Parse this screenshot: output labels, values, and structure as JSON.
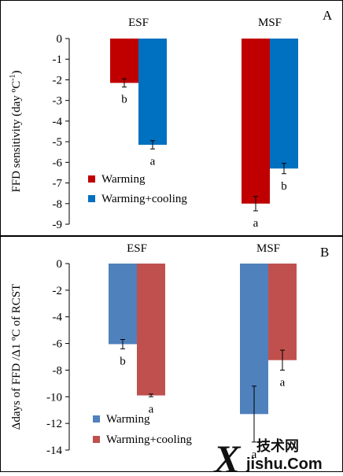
{
  "chart_data": [
    {
      "type": "bar",
      "panel_label": "A",
      "categories": [
        "ESF",
        "MSF"
      ],
      "ylabel_main": "FFD  sensitivity (day ºC",
      "ylabel_sup": "-1",
      "ylabel_close": ")",
      "ylim": [
        -9,
        0
      ],
      "yticks": [
        0,
        -1,
        -2,
        -3,
        -4,
        -5,
        -6,
        -7,
        -8,
        -9
      ],
      "series": [
        {
          "name": "Warming",
          "color": "#c00000",
          "values": [
            -2.15,
            -8.0
          ],
          "errors": [
            0.2,
            0.35
          ],
          "letters": [
            "b",
            "a"
          ]
        },
        {
          "name": "Warming+cooling",
          "color": "#0070c0",
          "values": [
            -5.15,
            -6.3
          ],
          "errors": [
            0.2,
            0.25
          ],
          "letters": [
            "a",
            "b"
          ]
        }
      ],
      "legend_position": "bottom-left"
    },
    {
      "type": "bar",
      "panel_label": "B",
      "categories": [
        "ESF",
        "MSF"
      ],
      "ylabel_main": "Δdays of FFD /Δ1 ºC of RCST",
      "ylim": [
        -14,
        0
      ],
      "yticks": [
        0,
        -2,
        -4,
        -6,
        -8,
        -10,
        -12,
        -14
      ],
      "series": [
        {
          "name": "Warming",
          "color": "#4f81bd",
          "values": [
            -6.05,
            -11.3
          ],
          "errors": [
            0.35,
            2.1
          ],
          "letters": [
            "b",
            "a"
          ]
        },
        {
          "name": "Warming+cooling",
          "color": "#c0504d",
          "values": [
            -9.9,
            -7.25
          ],
          "errors": [
            0.1,
            0.75
          ],
          "letters": [
            "a",
            "a"
          ]
        }
      ],
      "legend_position": "bottom-left"
    }
  ],
  "watermark": {
    "zh": "技术网",
    "en": "jishu.Com",
    "initial": "X"
  }
}
